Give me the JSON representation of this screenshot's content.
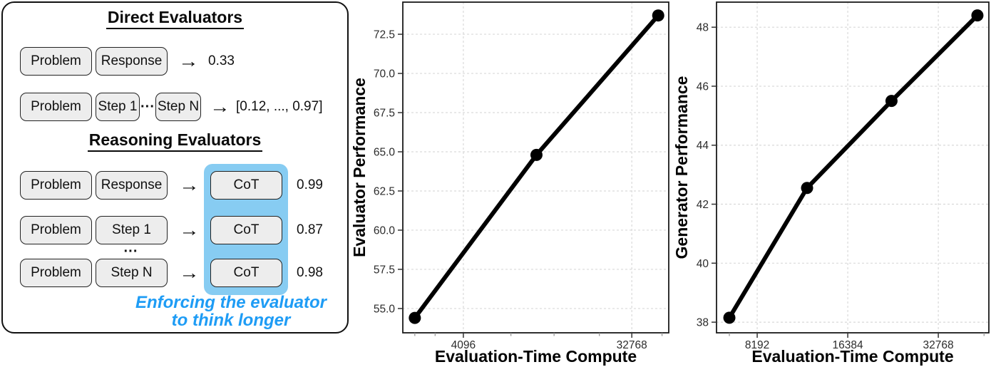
{
  "diagram": {
    "direct_title": "Direct Evaluators",
    "reasoning_title": "Reasoning Evaluators",
    "arrow_glyph": "→",
    "dots_inline": "···",
    "dots_vertical": "···",
    "rows": {
      "direct1": {
        "b1": "Problem",
        "b2": "Response",
        "out": "0.33"
      },
      "direct2": {
        "b1": "Problem",
        "b2": "Step 1",
        "b3": "Step N",
        "out": "[0.12, ..., 0.97]"
      },
      "reason1": {
        "b1": "Problem",
        "b2": "Response",
        "cot": "CoT",
        "out": "0.99"
      },
      "reason2": {
        "b1": "Problem",
        "b2": "Step 1",
        "cot": "CoT",
        "out": "0.87"
      },
      "reason3": {
        "b1": "Problem",
        "b2": "Step N",
        "cot": "CoT",
        "out": "0.98"
      }
    },
    "caption": {
      "line1": "Enforcing the evaluator",
      "line2": "to think longer"
    },
    "colors": {
      "highlight": "#87CCF2",
      "caption_blue": "#1E9CF5",
      "box_fill": "#EDEDED",
      "box_border": "#222222"
    }
  },
  "chart_data": [
    {
      "type": "line",
      "ylabel": "Evaluator Performance",
      "xlabel": "Evaluation-Time Compute",
      "xscale": "log2",
      "x": [
        2250,
        10100,
        45400
      ],
      "y": [
        54.4,
        64.8,
        73.7
      ],
      "xticks": [
        4096,
        32768
      ],
      "xtick_labels": [
        "4096",
        "32768"
      ],
      "xticks_minor": [
        2250,
        2890,
        7370,
        12550,
        21960,
        47600
      ],
      "yticks": [
        55.0,
        57.5,
        60.0,
        62.5,
        65.0,
        67.5,
        70.0,
        72.5
      ],
      "ytick_labels": [
        "55.0",
        "57.5",
        "60.0",
        "62.5",
        "65.0",
        "67.5",
        "70.0",
        "72.5"
      ],
      "ylim": [
        53.45,
        74.55
      ],
      "xlim": [
        1940,
        51700
      ],
      "grid": true,
      "legend": null,
      "line_color": "#000000",
      "marker": "circle"
    },
    {
      "type": "line",
      "ylabel": "Generator Performance",
      "xlabel": "Evaluation-Time Compute",
      "xscale": "log2",
      "x": [
        6620,
        12000,
        22900,
        44200
      ],
      "y": [
        38.15,
        42.55,
        45.5,
        48.4
      ],
      "xticks": [
        8192,
        16384,
        32768
      ],
      "xtick_labels": [
        "8192",
        "16384",
        "32768"
      ],
      "xticks_minor": [
        6620,
        46500
      ],
      "yticks": [
        38,
        40,
        42,
        44,
        46,
        48
      ],
      "ytick_labels": [
        "38",
        "40",
        "42",
        "44",
        "46",
        "48"
      ],
      "ylim": [
        37.64,
        48.85
      ],
      "xlim": [
        6000,
        48250
      ],
      "grid": true,
      "legend": null,
      "line_color": "#000000",
      "marker": "circle"
    }
  ]
}
